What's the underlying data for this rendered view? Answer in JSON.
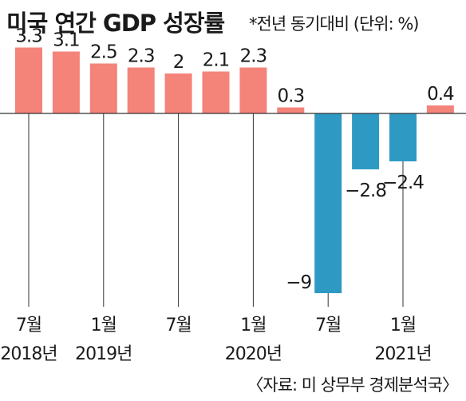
{
  "title": "미국 연간 GDP 성장률",
  "subtitle": "*전년 동기대비 (단위: %)",
  "source": "〈자료: 미 상무부 경제분석국〉",
  "colors": {
    "positive": "#f4837a",
    "negative": "#2e9ac4",
    "axis": "#333333",
    "text": "#1a1a1a"
  },
  "chart_data": {
    "type": "bar",
    "categories": [
      "2018-07",
      "2018-10",
      "2019-01",
      "2019-04",
      "2019-07",
      "2019-10",
      "2020-01",
      "2020-04",
      "2020-07",
      "2020-10",
      "2021-01",
      "2021-04"
    ],
    "values": [
      3.3,
      3.1,
      2.5,
      2.3,
      2,
      2.1,
      2.3,
      0.3,
      -9,
      -2.8,
      -2.4,
      0.4
    ],
    "value_labels": [
      "3.3",
      "3.1",
      "2.5",
      "2.3",
      "2",
      "2.1",
      "2.3",
      "0.3",
      "−9",
      "−2.8",
      "−2.4",
      "0.4"
    ],
    "tick_labels": [
      {
        "index": 0,
        "lines": [
          "7월",
          "2018년"
        ]
      },
      {
        "index": 2,
        "lines": [
          "1월",
          "2019년"
        ]
      },
      {
        "index": 4,
        "lines": [
          "7월",
          ""
        ]
      },
      {
        "index": 6,
        "lines": [
          "1월",
          "2020년"
        ]
      },
      {
        "index": 8,
        "lines": [
          "7월",
          ""
        ]
      },
      {
        "index": 10,
        "lines": [
          "1월",
          "2021년"
        ]
      }
    ],
    "ylim": [
      -9,
      3.5
    ],
    "grid": false,
    "legend": "none"
  }
}
